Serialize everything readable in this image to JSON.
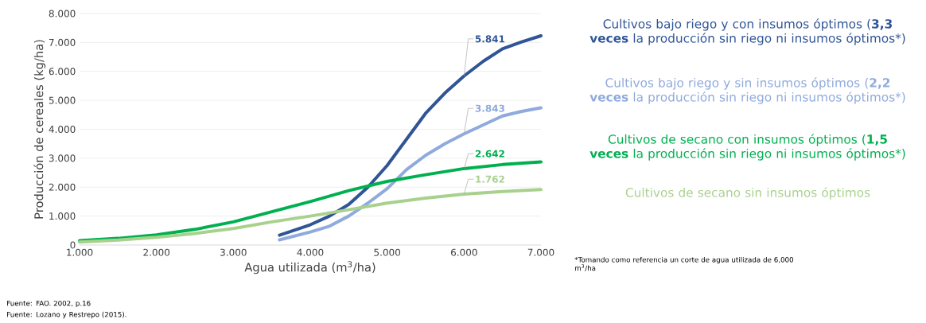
{
  "chart_data": {
    "type": "line",
    "xlabel": "Agua utilizada (m$^{3}$/ha)",
    "ylabel": "Producción de cereales (kg/ha)",
    "xlim": [
      1000,
      7000
    ],
    "ylim": [
      0,
      8000
    ],
    "xticks": [
      {
        "value": 1000,
        "label": "1.000"
      },
      {
        "value": 2000,
        "label": "2.000"
      },
      {
        "value": 3000,
        "label": "3.000"
      },
      {
        "value": 4000,
        "label": "4.000"
      },
      {
        "value": 5000,
        "label": "5.000"
      },
      {
        "value": 6000,
        "label": "6.000"
      },
      {
        "value": 7000,
        "label": "7.000"
      }
    ],
    "yticks": [
      {
        "value": 0,
        "label": "0"
      },
      {
        "value": 1000,
        "label": "1.000"
      },
      {
        "value": 2000,
        "label": "2.000"
      },
      {
        "value": 3000,
        "label": "3.000"
      },
      {
        "value": 4000,
        "label": "4.000"
      },
      {
        "value": 5000,
        "label": "5.000"
      },
      {
        "value": 6000,
        "label": "6.000"
      },
      {
        "value": 7000,
        "label": "7.000"
      },
      {
        "value": 8000,
        "label": "8.000"
      }
    ],
    "grid": "y",
    "legend": "right",
    "marker": "none",
    "line_style": "solid",
    "series": [
      {
        "name": "Cultivos bajo riego y con insumos óptimos (**3,3 veces** la producción sin riego ni insumos óptimos*)",
        "color": "#2f5597",
        "x": [
          3600,
          4000,
          4250,
          4500,
          4750,
          5000,
          5250,
          5500,
          5750,
          6000,
          6250,
          6500,
          6750,
          7000
        ],
        "values": [
          340,
          700,
          1000,
          1400,
          2000,
          2750,
          3650,
          4550,
          5250,
          5841,
          6350,
          6780,
          7020,
          7230
        ],
        "value_labels": [
          null,
          null,
          null,
          null,
          null,
          null,
          null,
          null,
          null,
          "5.841",
          null,
          null,
          null,
          null
        ]
      },
      {
        "name": "Cultivos bajo riego y sin insumos óptimos (**2,2 veces** la producción sin riego ni insumos óptimos*)",
        "color": "#8faadc",
        "x": [
          3600,
          4000,
          4250,
          4500,
          4750,
          5000,
          5250,
          5500,
          5750,
          6000,
          6250,
          6500,
          6750,
          7000
        ],
        "values": [
          180,
          450,
          650,
          1000,
          1450,
          1950,
          2600,
          3100,
          3500,
          3843,
          4150,
          4460,
          4620,
          4740
        ],
        "value_labels": [
          null,
          null,
          null,
          null,
          null,
          null,
          null,
          null,
          null,
          "3.843",
          null,
          null,
          null,
          null
        ]
      },
      {
        "name": "Cultivos de secano con insumos óptimos (**1,5 veces** la producción sin riego ni insumos óptimos*)",
        "color": "#00b050",
        "x": [
          1000,
          1500,
          2000,
          2500,
          3000,
          3500,
          4000,
          4500,
          5000,
          5500,
          6000,
          6500,
          7000
        ],
        "values": [
          150,
          230,
          350,
          540,
          800,
          1150,
          1500,
          1880,
          2200,
          2430,
          2642,
          2780,
          2870
        ],
        "value_labels": [
          null,
          null,
          null,
          null,
          null,
          null,
          null,
          null,
          null,
          null,
          "2.642",
          null,
          null
        ]
      },
      {
        "name": "Cultivos de secano sin insumos óptimos",
        "color": "#a9d18e",
        "x": [
          1000,
          1500,
          2000,
          2500,
          3000,
          3500,
          4000,
          4500,
          5000,
          5500,
          6000,
          6500,
          7000
        ],
        "values": [
          100,
          170,
          270,
          400,
          570,
          800,
          1000,
          1220,
          1450,
          1620,
          1762,
          1850,
          1920
        ],
        "value_labels": [
          null,
          null,
          null,
          null,
          null,
          null,
          null,
          null,
          null,
          null,
          "1.762",
          null,
          null
        ]
      }
    ],
    "annotations": [
      "*Tomando como referencia un corte de agua utilizada de 6,000 m$^{3}$/ha",
      "Fuente: FAO. 2002, p.16",
      "Fuente: Lozano y Restrepo (2015)."
    ]
  }
}
